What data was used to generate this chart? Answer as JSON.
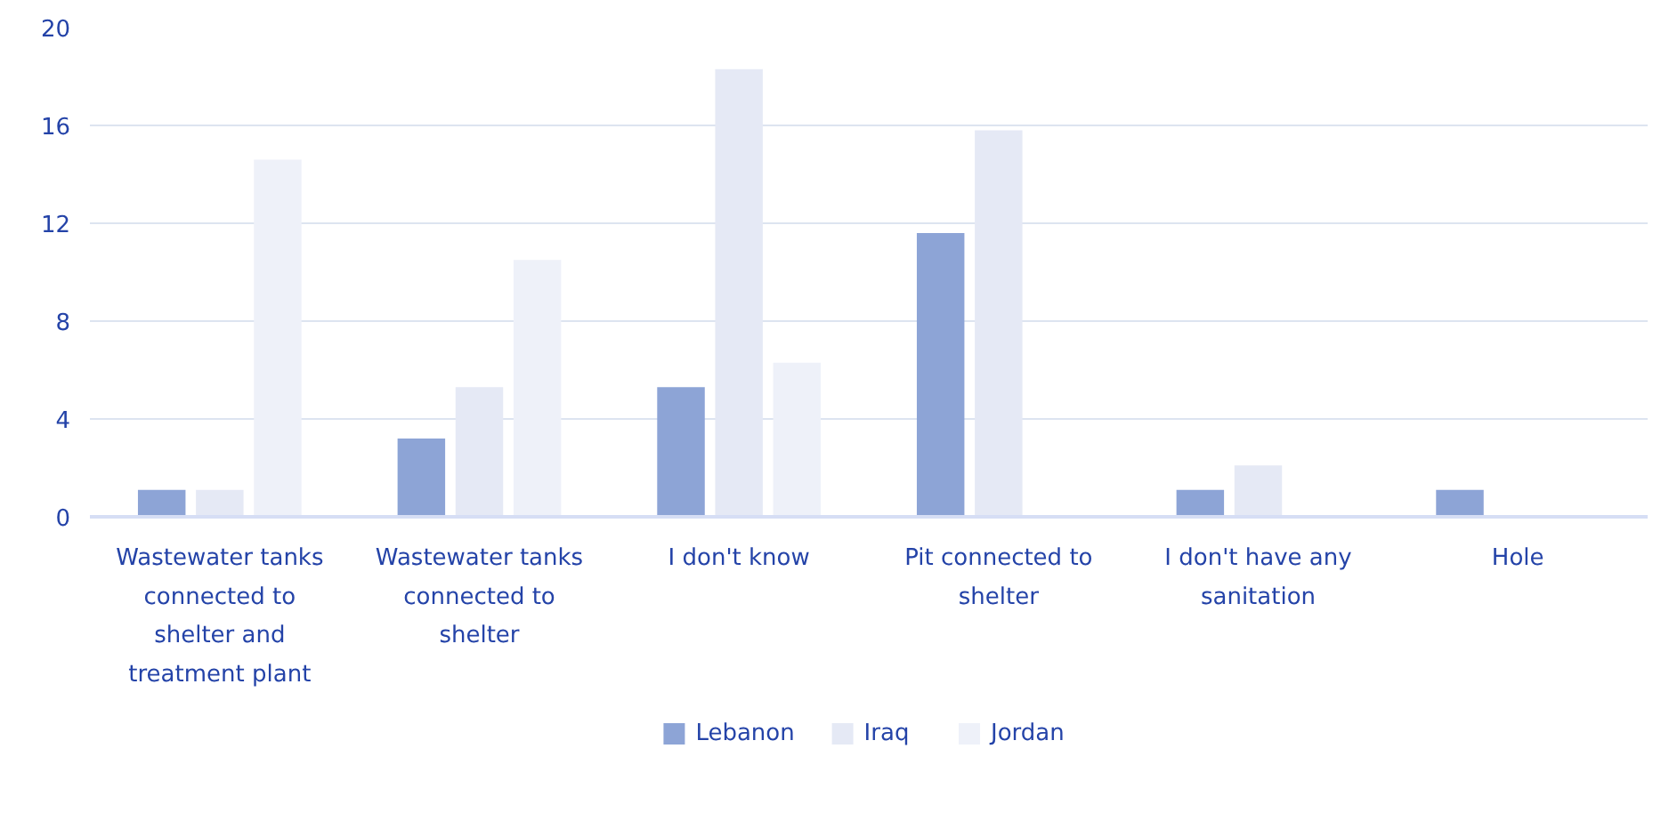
{
  "chart_data": {
    "type": "bar",
    "categories": [
      "Wastewater tanks connected to shelter and treatment plant",
      "Wastewater tanks connected to shelter",
      "I don't know",
      "Pit connected to shelter",
      "I don't have any sanitation",
      "Hole"
    ],
    "series": [
      {
        "name": "Lebanon",
        "color": "#8da4d6",
        "values": [
          1.1,
          3.2,
          5.3,
          11.6,
          1.1,
          1.1
        ]
      },
      {
        "name": "Iraq",
        "color": "#e5e9f5",
        "values": [
          1.1,
          5.3,
          18.3,
          15.8,
          2.1,
          0
        ]
      },
      {
        "name": "Jordan",
        "color": "#eef1f9",
        "values": [
          14.6,
          10.5,
          6.3,
          0,
          0,
          0
        ]
      }
    ],
    "ylim": [
      0,
      20
    ],
    "yticks": [
      0,
      4,
      8,
      12,
      16,
      20
    ],
    "grid": "y",
    "legend": "bottom"
  }
}
